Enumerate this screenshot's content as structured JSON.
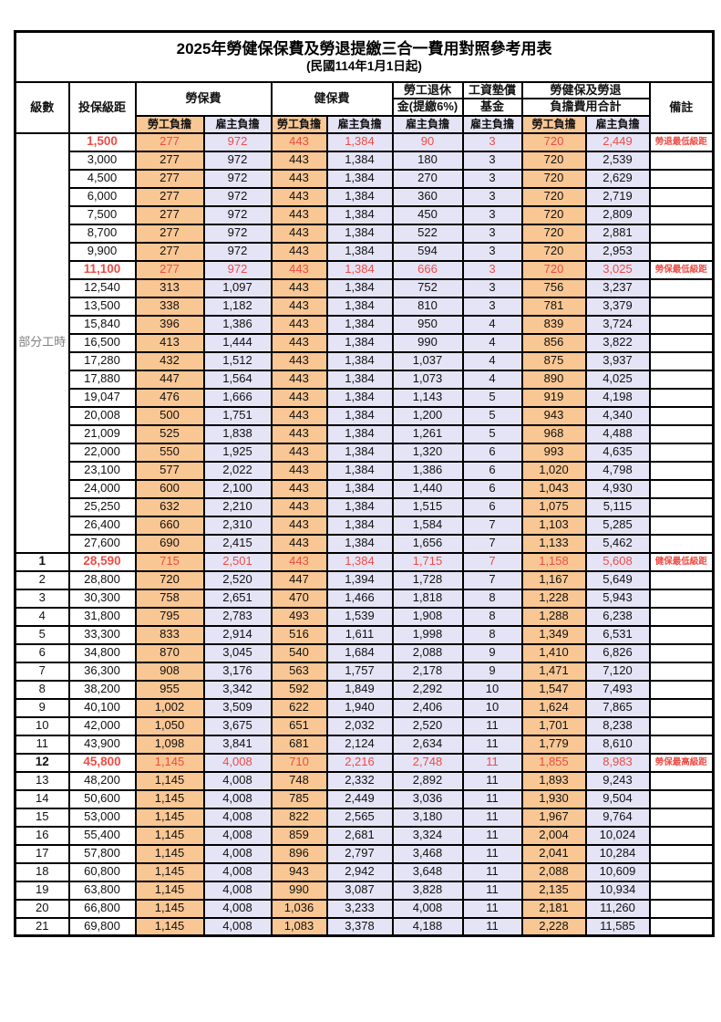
{
  "title": "2025年勞健保保費及勞退提繳三合一費用對照參考用表",
  "subtitle": "(民國114年1月1日起)",
  "colors": {
    "employee_col_bg": "#f9c794",
    "employer_col_bg": "#e5e4f6",
    "highlight_text": "#ed4c45",
    "parttime_text": "#7f7f7f"
  },
  "header": {
    "col_level": "級數",
    "col_bracket": "投保級距",
    "grp_labor_insurance": "勞保費",
    "grp_health_insurance": "健保費",
    "grp_pension_line1": "勞工退休",
    "grp_pension_line2": "金(提繳6%)",
    "grp_wage_fund_line1": "工資墊償",
    "grp_wage_fund_line2": "基金",
    "grp_total_line1": "勞健保及勞退",
    "grp_total_line2": "負擔費用合計",
    "col_remark": "備註",
    "lbl_employee": "勞工負擔",
    "lbl_employer": "雇主負擔"
  },
  "parttime_label": "部分工時",
  "rows": [
    {
      "level": "",
      "bracket": "1,500",
      "v": [
        "277",
        "972",
        "443",
        "1,384",
        "90",
        "3",
        "720",
        "2,449"
      ],
      "remark": "勞退最低級距",
      "hl": true
    },
    {
      "level": "",
      "bracket": "3,000",
      "v": [
        "277",
        "972",
        "443",
        "1,384",
        "180",
        "3",
        "720",
        "2,539"
      ],
      "remark": "",
      "hl": false
    },
    {
      "level": "",
      "bracket": "4,500",
      "v": [
        "277",
        "972",
        "443",
        "1,384",
        "270",
        "3",
        "720",
        "2,629"
      ],
      "remark": "",
      "hl": false
    },
    {
      "level": "",
      "bracket": "6,000",
      "v": [
        "277",
        "972",
        "443",
        "1,384",
        "360",
        "3",
        "720",
        "2,719"
      ],
      "remark": "",
      "hl": false
    },
    {
      "level": "",
      "bracket": "7,500",
      "v": [
        "277",
        "972",
        "443",
        "1,384",
        "450",
        "3",
        "720",
        "2,809"
      ],
      "remark": "",
      "hl": false
    },
    {
      "level": "",
      "bracket": "8,700",
      "v": [
        "277",
        "972",
        "443",
        "1,384",
        "522",
        "3",
        "720",
        "2,881"
      ],
      "remark": "",
      "hl": false
    },
    {
      "level": "",
      "bracket": "9,900",
      "v": [
        "277",
        "972",
        "443",
        "1,384",
        "594",
        "3",
        "720",
        "2,953"
      ],
      "remark": "",
      "hl": false
    },
    {
      "level": "",
      "bracket": "11,100",
      "v": [
        "277",
        "972",
        "443",
        "1,384",
        "666",
        "3",
        "720",
        "3,025"
      ],
      "remark": "勞保最低級距",
      "hl": true
    },
    {
      "level": "",
      "bracket": "12,540",
      "v": [
        "313",
        "1,097",
        "443",
        "1,384",
        "752",
        "3",
        "756",
        "3,237"
      ],
      "remark": "",
      "hl": false
    },
    {
      "level": "",
      "bracket": "13,500",
      "v": [
        "338",
        "1,182",
        "443",
        "1,384",
        "810",
        "3",
        "781",
        "3,379"
      ],
      "remark": "",
      "hl": false
    },
    {
      "level": "",
      "bracket": "15,840",
      "v": [
        "396",
        "1,386",
        "443",
        "1,384",
        "950",
        "4",
        "839",
        "3,724"
      ],
      "remark": "",
      "hl": false
    },
    {
      "level": "",
      "bracket": "16,500",
      "v": [
        "413",
        "1,444",
        "443",
        "1,384",
        "990",
        "4",
        "856",
        "3,822"
      ],
      "remark": "",
      "hl": false
    },
    {
      "level": "",
      "bracket": "17,280",
      "v": [
        "432",
        "1,512",
        "443",
        "1,384",
        "1,037",
        "4",
        "875",
        "3,937"
      ],
      "remark": "",
      "hl": false
    },
    {
      "level": "",
      "bracket": "17,880",
      "v": [
        "447",
        "1,564",
        "443",
        "1,384",
        "1,073",
        "4",
        "890",
        "4,025"
      ],
      "remark": "",
      "hl": false
    },
    {
      "level": "",
      "bracket": "19,047",
      "v": [
        "476",
        "1,666",
        "443",
        "1,384",
        "1,143",
        "5",
        "919",
        "4,198"
      ],
      "remark": "",
      "hl": false
    },
    {
      "level": "",
      "bracket": "20,008",
      "v": [
        "500",
        "1,751",
        "443",
        "1,384",
        "1,200",
        "5",
        "943",
        "4,340"
      ],
      "remark": "",
      "hl": false
    },
    {
      "level": "",
      "bracket": "21,009",
      "v": [
        "525",
        "1,838",
        "443",
        "1,384",
        "1,261",
        "5",
        "968",
        "4,488"
      ],
      "remark": "",
      "hl": false
    },
    {
      "level": "",
      "bracket": "22,000",
      "v": [
        "550",
        "1,925",
        "443",
        "1,384",
        "1,320",
        "6",
        "993",
        "4,635"
      ],
      "remark": "",
      "hl": false
    },
    {
      "level": "",
      "bracket": "23,100",
      "v": [
        "577",
        "2,022",
        "443",
        "1,384",
        "1,386",
        "6",
        "1,020",
        "4,798"
      ],
      "remark": "",
      "hl": false
    },
    {
      "level": "",
      "bracket": "24,000",
      "v": [
        "600",
        "2,100",
        "443",
        "1,384",
        "1,440",
        "6",
        "1,043",
        "4,930"
      ],
      "remark": "",
      "hl": false
    },
    {
      "level": "",
      "bracket": "25,250",
      "v": [
        "632",
        "2,210",
        "443",
        "1,384",
        "1,515",
        "6",
        "1,075",
        "5,115"
      ],
      "remark": "",
      "hl": false
    },
    {
      "level": "",
      "bracket": "26,400",
      "v": [
        "660",
        "2,310",
        "443",
        "1,384",
        "1,584",
        "7",
        "1,103",
        "5,285"
      ],
      "remark": "",
      "hl": false
    },
    {
      "level": "",
      "bracket": "27,600",
      "v": [
        "690",
        "2,415",
        "443",
        "1,384",
        "1,656",
        "7",
        "1,133",
        "5,462"
      ],
      "remark": "",
      "hl": false
    },
    {
      "level": "1",
      "bracket": "28,590",
      "v": [
        "715",
        "2,501",
        "443",
        "1,384",
        "1,715",
        "7",
        "1,158",
        "5,608"
      ],
      "remark": "健保最低級距",
      "hl": true
    },
    {
      "level": "2",
      "bracket": "28,800",
      "v": [
        "720",
        "2,520",
        "447",
        "1,394",
        "1,728",
        "7",
        "1,167",
        "5,649"
      ],
      "remark": "",
      "hl": false
    },
    {
      "level": "3",
      "bracket": "30,300",
      "v": [
        "758",
        "2,651",
        "470",
        "1,466",
        "1,818",
        "8",
        "1,228",
        "5,943"
      ],
      "remark": "",
      "hl": false
    },
    {
      "level": "4",
      "bracket": "31,800",
      "v": [
        "795",
        "2,783",
        "493",
        "1,539",
        "1,908",
        "8",
        "1,288",
        "6,238"
      ],
      "remark": "",
      "hl": false
    },
    {
      "level": "5",
      "bracket": "33,300",
      "v": [
        "833",
        "2,914",
        "516",
        "1,611",
        "1,998",
        "8",
        "1,349",
        "6,531"
      ],
      "remark": "",
      "hl": false
    },
    {
      "level": "6",
      "bracket": "34,800",
      "v": [
        "870",
        "3,045",
        "540",
        "1,684",
        "2,088",
        "9",
        "1,410",
        "6,826"
      ],
      "remark": "",
      "hl": false
    },
    {
      "level": "7",
      "bracket": "36,300",
      "v": [
        "908",
        "3,176",
        "563",
        "1,757",
        "2,178",
        "9",
        "1,471",
        "7,120"
      ],
      "remark": "",
      "hl": false
    },
    {
      "level": "8",
      "bracket": "38,200",
      "v": [
        "955",
        "3,342",
        "592",
        "1,849",
        "2,292",
        "10",
        "1,547",
        "7,493"
      ],
      "remark": "",
      "hl": false
    },
    {
      "level": "9",
      "bracket": "40,100",
      "v": [
        "1,002",
        "3,509",
        "622",
        "1,940",
        "2,406",
        "10",
        "1,624",
        "7,865"
      ],
      "remark": "",
      "hl": false
    },
    {
      "level": "10",
      "bracket": "42,000",
      "v": [
        "1,050",
        "3,675",
        "651",
        "2,032",
        "2,520",
        "11",
        "1,701",
        "8,238"
      ],
      "remark": "",
      "hl": false
    },
    {
      "level": "11",
      "bracket": "43,900",
      "v": [
        "1,098",
        "3,841",
        "681",
        "2,124",
        "2,634",
        "11",
        "1,779",
        "8,610"
      ],
      "remark": "",
      "hl": false
    },
    {
      "level": "12",
      "bracket": "45,800",
      "v": [
        "1,145",
        "4,008",
        "710",
        "2,216",
        "2,748",
        "11",
        "1,855",
        "8,983"
      ],
      "remark": "勞保最高級距",
      "hl": true
    },
    {
      "level": "13",
      "bracket": "48,200",
      "v": [
        "1,145",
        "4,008",
        "748",
        "2,332",
        "2,892",
        "11",
        "1,893",
        "9,243"
      ],
      "remark": "",
      "hl": false
    },
    {
      "level": "14",
      "bracket": "50,600",
      "v": [
        "1,145",
        "4,008",
        "785",
        "2,449",
        "3,036",
        "11",
        "1,930",
        "9,504"
      ],
      "remark": "",
      "hl": false
    },
    {
      "level": "15",
      "bracket": "53,000",
      "v": [
        "1,145",
        "4,008",
        "822",
        "2,565",
        "3,180",
        "11",
        "1,967",
        "9,764"
      ],
      "remark": "",
      "hl": false
    },
    {
      "level": "16",
      "bracket": "55,400",
      "v": [
        "1,145",
        "4,008",
        "859",
        "2,681",
        "3,324",
        "11",
        "2,004",
        "10,024"
      ],
      "remark": "",
      "hl": false
    },
    {
      "level": "17",
      "bracket": "57,800",
      "v": [
        "1,145",
        "4,008",
        "896",
        "2,797",
        "3,468",
        "11",
        "2,041",
        "10,284"
      ],
      "remark": "",
      "hl": false
    },
    {
      "level": "18",
      "bracket": "60,800",
      "v": [
        "1,145",
        "4,008",
        "943",
        "2,942",
        "3,648",
        "11",
        "2,088",
        "10,609"
      ],
      "remark": "",
      "hl": false
    },
    {
      "level": "19",
      "bracket": "63,800",
      "v": [
        "1,145",
        "4,008",
        "990",
        "3,087",
        "3,828",
        "11",
        "2,135",
        "10,934"
      ],
      "remark": "",
      "hl": false
    },
    {
      "level": "20",
      "bracket": "66,800",
      "v": [
        "1,145",
        "4,008",
        "1,036",
        "3,233",
        "4,008",
        "11",
        "2,181",
        "11,260"
      ],
      "remark": "",
      "hl": false
    },
    {
      "level": "21",
      "bracket": "69,800",
      "v": [
        "1,145",
        "4,008",
        "1,083",
        "3,378",
        "4,188",
        "11",
        "2,228",
        "11,585"
      ],
      "remark": "",
      "hl": false
    }
  ]
}
